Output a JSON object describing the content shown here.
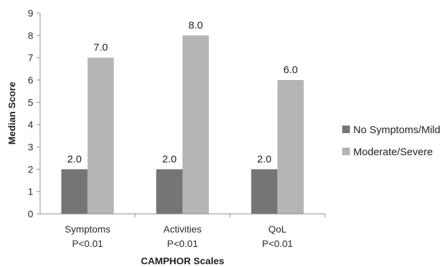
{
  "chart_data": {
    "type": "bar",
    "title": "",
    "xlabel": "CAMPHOR Scales",
    "ylabel": "Median Score",
    "ylim": [
      0,
      9
    ],
    "yticks": [
      0,
      1,
      2,
      3,
      4,
      5,
      6,
      7,
      8,
      9
    ],
    "categories": [
      {
        "name": "Symptoms",
        "sub": "P<0.01"
      },
      {
        "name": "Activities",
        "sub": "P<0.01"
      },
      {
        "name": "QoL",
        "sub": "P<0.01"
      }
    ],
    "series": [
      {
        "name": "No Symptoms/Mild",
        "color": "#757575",
        "values": [
          2.0,
          2.0,
          2.0
        ],
        "labels": [
          "2.0",
          "2.0",
          "2.0"
        ]
      },
      {
        "name": "Moderate/Severe",
        "color": "#b5b5b5",
        "values": [
          7.0,
          8.0,
          6.0
        ],
        "labels": [
          "7.0",
          "8.0",
          "6.0"
        ]
      }
    ],
    "grid": false,
    "legend": "right"
  }
}
